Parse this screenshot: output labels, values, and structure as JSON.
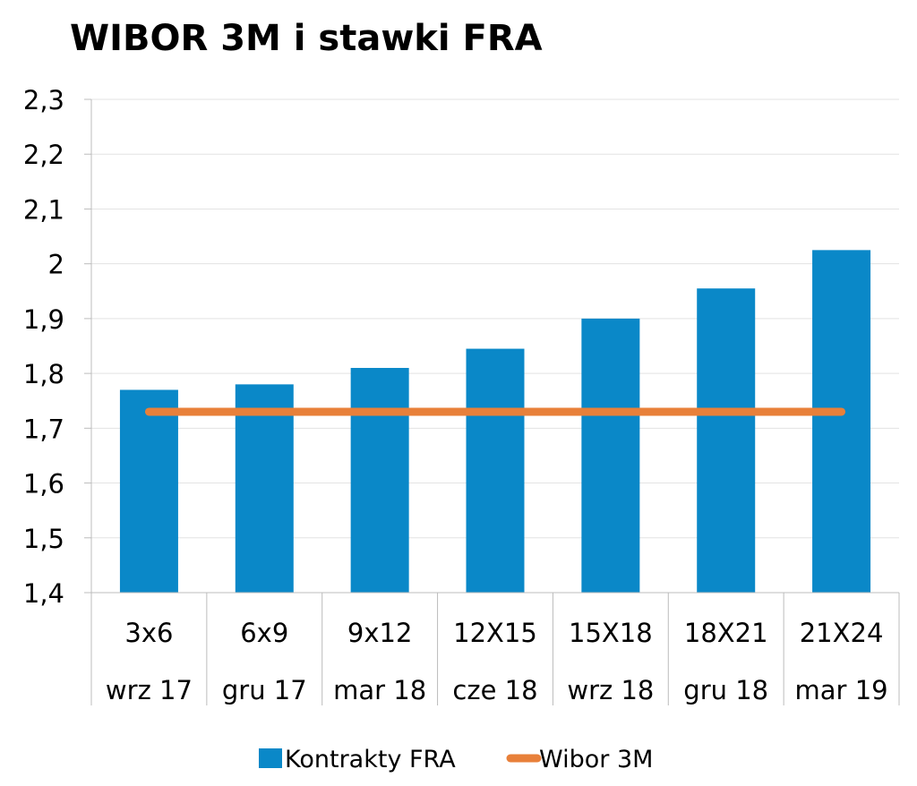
{
  "chart_data": {
    "type": "bar",
    "title": "WIBOR 3M i stawki FRA",
    "categories": [
      {
        "top": "3x6",
        "bottom": "wrz 17"
      },
      {
        "top": "6x9",
        "bottom": "gru 17"
      },
      {
        "top": "9x12",
        "bottom": "mar 18"
      },
      {
        "top": "12X15",
        "bottom": "cze 18"
      },
      {
        "top": "15X18",
        "bottom": "wrz 18"
      },
      {
        "top": "18X21",
        "bottom": "gru 18"
      },
      {
        "top": "21X24",
        "bottom": "mar 19"
      }
    ],
    "series": [
      {
        "name": "Kontrakty FRA",
        "kind": "bar",
        "color": "#0a88c8",
        "values": [
          1.77,
          1.78,
          1.81,
          1.845,
          1.9,
          1.955,
          2.025
        ]
      },
      {
        "name": "Wibor 3M",
        "kind": "line",
        "color": "#e8803a",
        "values": [
          1.73,
          1.73,
          1.73,
          1.73,
          1.73,
          1.73,
          1.73
        ]
      }
    ],
    "ylim": [
      1.4,
      2.3
    ],
    "yticks": [
      "1,4",
      "1,5",
      "1,6",
      "1,7",
      "1,8",
      "1,9",
      "2",
      "2,1",
      "2,2",
      "2,3"
    ],
    "ytick_values": [
      1.4,
      1.5,
      1.6,
      1.7,
      1.8,
      1.9,
      2.0,
      2.1,
      2.2,
      2.3
    ],
    "grid": true,
    "legend_position": "bottom"
  }
}
